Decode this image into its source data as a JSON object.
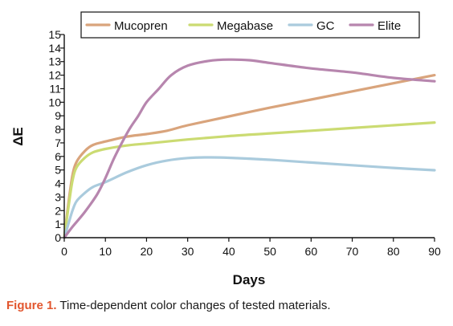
{
  "caption": {
    "label": "Figure 1.",
    "text": "Time-dependent color changes of tested materials."
  },
  "chart_data": {
    "type": "line",
    "xlabel": "Days",
    "ylabel": "ΔE",
    "xlim": [
      0,
      90
    ],
    "ylim": [
      0,
      15
    ],
    "xticks": [
      0,
      10,
      20,
      30,
      40,
      50,
      60,
      70,
      80,
      90
    ],
    "yticks": [
      0,
      1,
      2,
      3,
      4,
      5,
      6,
      7,
      8,
      9,
      10,
      11,
      12,
      13,
      14,
      15
    ],
    "grid": false,
    "legend_position": "top",
    "series": [
      {
        "name": "Mucopren",
        "color": "#d9a47c",
        "points": [
          [
            0,
            0
          ],
          [
            1,
            2.5
          ],
          [
            2,
            4.6
          ],
          [
            3,
            5.6
          ],
          [
            5,
            6.4
          ],
          [
            7,
            6.85
          ],
          [
            10,
            7.1
          ],
          [
            15,
            7.45
          ],
          [
            20,
            7.65
          ],
          [
            25,
            7.9
          ],
          [
            30,
            8.3
          ],
          [
            40,
            8.95
          ],
          [
            50,
            9.6
          ],
          [
            60,
            10.2
          ],
          [
            70,
            10.8
          ],
          [
            80,
            11.4
          ],
          [
            90,
            12.0
          ]
        ]
      },
      {
        "name": "Megabase",
        "color": "#cbdb72",
        "points": [
          [
            0,
            0
          ],
          [
            1,
            2.2
          ],
          [
            2,
            4.2
          ],
          [
            3,
            5.2
          ],
          [
            5,
            5.9
          ],
          [
            7,
            6.3
          ],
          [
            10,
            6.55
          ],
          [
            15,
            6.8
          ],
          [
            20,
            6.95
          ],
          [
            30,
            7.25
          ],
          [
            40,
            7.5
          ],
          [
            50,
            7.7
          ],
          [
            60,
            7.9
          ],
          [
            70,
            8.1
          ],
          [
            80,
            8.3
          ],
          [
            90,
            8.5
          ]
        ]
      },
      {
        "name": "GC",
        "color": "#aacbdd",
        "points": [
          [
            0,
            0
          ],
          [
            1,
            1.0
          ],
          [
            2,
            2.0
          ],
          [
            3,
            2.7
          ],
          [
            5,
            3.3
          ],
          [
            7,
            3.75
          ],
          [
            10,
            4.1
          ],
          [
            15,
            4.8
          ],
          [
            20,
            5.35
          ],
          [
            25,
            5.7
          ],
          [
            30,
            5.88
          ],
          [
            35,
            5.93
          ],
          [
            40,
            5.9
          ],
          [
            50,
            5.75
          ],
          [
            60,
            5.55
          ],
          [
            70,
            5.35
          ],
          [
            80,
            5.15
          ],
          [
            90,
            4.98
          ]
        ]
      },
      {
        "name": "Elite",
        "color": "#b786ae",
        "points": [
          [
            0,
            0
          ],
          [
            2,
            0.8
          ],
          [
            5,
            1.9
          ],
          [
            8,
            3.2
          ],
          [
            10,
            4.4
          ],
          [
            12,
            5.8
          ],
          [
            14,
            7.0
          ],
          [
            16,
            8.1
          ],
          [
            18,
            9.0
          ],
          [
            20,
            10.0
          ],
          [
            23,
            11.0
          ],
          [
            26,
            12.0
          ],
          [
            30,
            12.7
          ],
          [
            35,
            13.05
          ],
          [
            40,
            13.15
          ],
          [
            45,
            13.1
          ],
          [
            50,
            12.9
          ],
          [
            60,
            12.5
          ],
          [
            70,
            12.2
          ],
          [
            80,
            11.8
          ],
          [
            90,
            11.55
          ]
        ]
      }
    ]
  }
}
